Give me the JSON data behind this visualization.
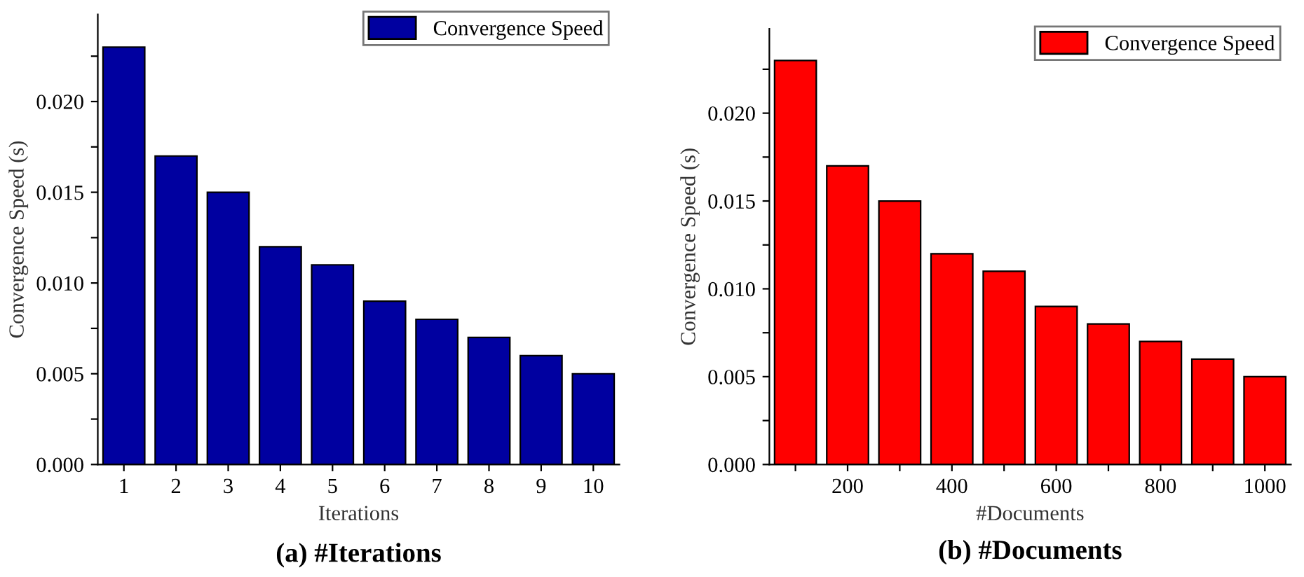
{
  "chart_data": [
    {
      "type": "bar",
      "title": "(a) #Iterations",
      "xlabel": "Iterations",
      "ylabel": "Convergence Speed (s)",
      "categories": [
        "1",
        "2",
        "3",
        "4",
        "5",
        "6",
        "7",
        "8",
        "9",
        "10"
      ],
      "series": [
        {
          "name": "Convergence Speed",
          "color": "#0000a0",
          "values": [
            0.023,
            0.017,
            0.015,
            0.012,
            0.011,
            0.009,
            0.008,
            0.007,
            0.006,
            0.005
          ]
        }
      ],
      "ylim": [
        0,
        0.0248
      ],
      "yticks": [
        {
          "value": 0,
          "label": "0.000"
        },
        {
          "value": 0.0025,
          "label": null
        },
        {
          "value": 0.005,
          "label": "0.005"
        },
        {
          "value": 0.0075,
          "label": null
        },
        {
          "value": 0.01,
          "label": "0.010"
        },
        {
          "value": 0.0125,
          "label": null
        },
        {
          "value": 0.015,
          "label": "0.015"
        },
        {
          "value": 0.0175,
          "label": null
        },
        {
          "value": 0.02,
          "label": "0.020"
        },
        {
          "value": 0.0225,
          "label": null
        }
      ],
      "legend": "top right",
      "grid": false
    },
    {
      "type": "bar",
      "title": "(b) #Documents",
      "xlabel": "#Documents",
      "ylabel": "Convergence Speed (s)",
      "x": [
        100,
        200,
        300,
        400,
        500,
        600,
        700,
        800,
        900,
        1000
      ],
      "series": [
        {
          "name": "Convergence Speed",
          "color": "#ff0000",
          "values": [
            0.023,
            0.017,
            0.015,
            0.012,
            0.011,
            0.009,
            0.008,
            0.007,
            0.006,
            0.005
          ]
        }
      ],
      "xlim": [
        50,
        1050
      ],
      "xticks": [
        {
          "value": 100,
          "label": null
        },
        200,
        {
          "value": 300,
          "label": null
        },
        400,
        {
          "value": 500,
          "label": null
        },
        600,
        {
          "value": 700,
          "label": null
        },
        800,
        {
          "value": 900,
          "label": null
        },
        1000
      ],
      "ylim": [
        0,
        0.0248
      ],
      "yticks": [
        {
          "value": 0,
          "label": "0.000"
        },
        {
          "value": 0.0025,
          "label": null
        },
        {
          "value": 0.005,
          "label": "0.005"
        },
        {
          "value": 0.0075,
          "label": null
        },
        {
          "value": 0.01,
          "label": "0.010"
        },
        {
          "value": 0.0125,
          "label": null
        },
        {
          "value": 0.015,
          "label": "0.015"
        },
        {
          "value": 0.0175,
          "label": null
        },
        {
          "value": 0.02,
          "label": "0.020"
        },
        {
          "value": 0.0225,
          "label": null
        }
      ],
      "legend": "top right",
      "grid": false
    }
  ]
}
